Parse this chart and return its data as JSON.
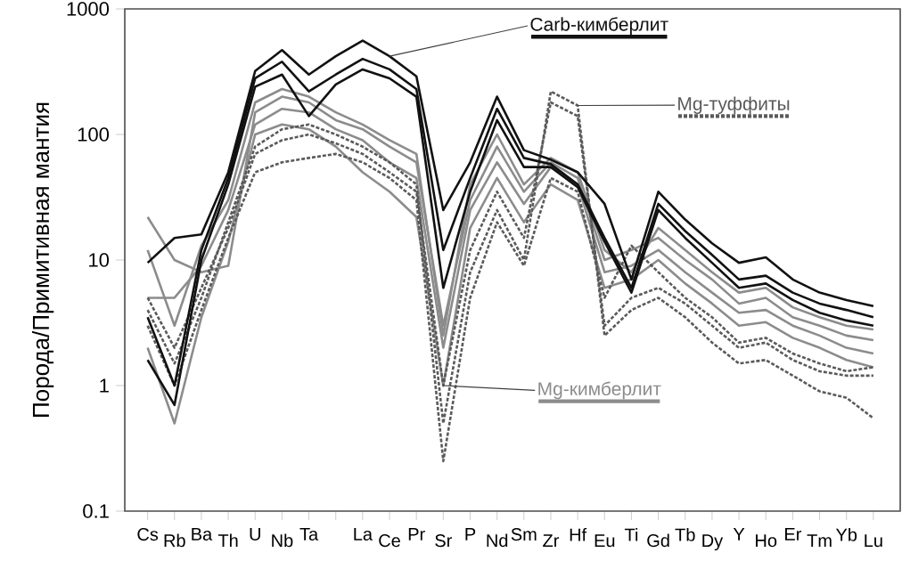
{
  "chart_data": {
    "type": "line",
    "ylabel": "Порода/Примитивная мантия",
    "log": true,
    "categories": [
      "Cs",
      "Rb",
      "Ba",
      "Th",
      "U",
      "Nb",
      "Ta",
      null,
      "La",
      "Ce",
      "Pr",
      "Sr",
      "P",
      "Nd",
      "Sm",
      "Zr",
      "Hf",
      "Eu",
      "Ti",
      "Gd",
      "Tb",
      "Dy",
      "Y",
      "Ho",
      "Er",
      "Tm",
      "Yb",
      "Lu"
    ],
    "ylim": [
      0.1,
      1000
    ],
    "yticks": [
      0.1,
      1,
      10,
      100,
      1000
    ],
    "series": [
      {
        "color": "#8c8c8c",
        "values": [
          22,
          10,
          8,
          9,
          150,
          200,
          180,
          130,
          110,
          80,
          60,
          3,
          30,
          80,
          35,
          60,
          45,
          10,
          12,
          15,
          10,
          7,
          4.5,
          5,
          3.5,
          3,
          2.5,
          2.3
        ]
      },
      {
        "color": "#8c8c8c",
        "values": [
          5,
          5,
          9,
          25,
          120,
          160,
          150,
          110,
          90,
          60,
          45,
          2,
          25,
          60,
          28,
          55,
          40,
          8,
          9,
          12,
          8,
          5.5,
          3.8,
          4,
          3,
          2.5,
          2,
          1.8
        ]
      },
      {
        "name": "Mg-кимберлит",
        "color": "#8c8c8c",
        "values": [
          2,
          0.5,
          3.5,
          14,
          100,
          120,
          110,
          80,
          50,
          35,
          22,
          1,
          18,
          45,
          20,
          40,
          30,
          6,
          7,
          10,
          6.5,
          4.5,
          3,
          3.2,
          2.4,
          2,
          1.6,
          1.4
        ]
      },
      {
        "color": "#8c8c8c",
        "values": [
          12,
          3,
          13,
          30,
          180,
          230,
          200,
          150,
          120,
          90,
          70,
          2.5,
          40,
          100,
          40,
          65,
          50,
          12,
          8,
          18,
          12,
          8,
          5.5,
          6,
          4.2,
          3.5,
          3,
          2.8
        ]
      },
      {
        "name": "Mg-туффиты",
        "color": "#5a5a5a",
        "line_style": "dashed",
        "values": [
          4,
          1.5,
          5,
          20,
          80,
          110,
          120,
          100,
          80,
          60,
          40,
          0.5,
          8,
          25,
          10,
          220,
          170,
          2.5,
          4,
          5,
          3.5,
          2.2,
          1.5,
          1.6,
          1.2,
          0.9,
          0.8,
          0.55
        ]
      },
      {
        "color": "#5a5a5a",
        "line_style": "dashed",
        "values": [
          5,
          2,
          6,
          18,
          70,
          90,
          100,
          85,
          70,
          50,
          35,
          1,
          12,
          35,
          15,
          180,
          140,
          3,
          5,
          6,
          4.5,
          3,
          2,
          2.2,
          1.6,
          1.3,
          1.2,
          1.2
        ]
      },
      {
        "color": "#5a5a5a",
        "line_style": "dashed",
        "values": [
          3,
          1,
          4,
          15,
          50,
          60,
          65,
          70,
          60,
          45,
          30,
          0.25,
          5,
          20,
          9,
          45,
          35,
          5,
          13,
          8,
          5,
          3.5,
          2.2,
          2.4,
          1.8,
          1.5,
          1.3,
          1.4
        ]
      },
      {
        "color": "#111111",
        "values": [
          3.5,
          1.0,
          12,
          45,
          280,
          380,
          220,
          300,
          400,
          330,
          230,
          12,
          45,
          160,
          65,
          58,
          40,
          15,
          6,
          28,
          17,
          11,
          7,
          7.5,
          5.5,
          4.5,
          4,
          3.5
        ]
      },
      {
        "color": "#111111",
        "values": [
          1.6,
          0.7,
          10,
          40,
          240,
          300,
          140,
          250,
          330,
          280,
          200,
          6,
          35,
          130,
          55,
          55,
          38,
          14,
          5.5,
          25,
          15,
          9.5,
          6,
          6.5,
          4.8,
          3.8,
          3.3,
          3.0
        ]
      },
      {
        "name": "Carb-кимберлит",
        "color": "#111111",
        "values": [
          9.5,
          15,
          16,
          50,
          320,
          470,
          300,
          420,
          560,
          420,
          290,
          25,
          60,
          200,
          75,
          63,
          50,
          28,
          7,
          35,
          21,
          13.6,
          9.5,
          10.5,
          7,
          5.5,
          4.8,
          4.3
        ]
      }
    ]
  }
}
